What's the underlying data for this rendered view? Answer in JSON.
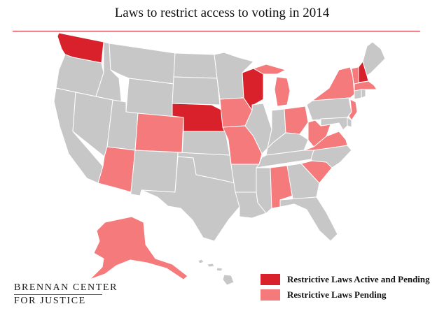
{
  "title": "Laws to restrict access to voting in 2014",
  "colors": {
    "active_and_pending": "#d8212a",
    "pending": "#f47a7c",
    "none": "#c7c7c7",
    "border": "#ffffff",
    "accent": "#d8212a"
  },
  "legend": [
    {
      "key": "active_and_pending",
      "label": "Restrictive Laws Active and Pending"
    },
    {
      "key": "pending",
      "label": "Restrictive Laws Pending"
    }
  ],
  "logo": {
    "line1": "BRENNAN CENTER",
    "line2": "FOR JUSTICE"
  },
  "states": {
    "WA": "active_and_pending",
    "OR": "none",
    "CA": "none",
    "NV": "none",
    "ID": "none",
    "MT": "none",
    "WY": "none",
    "UT": "none",
    "AZ": "pending",
    "CO": "pending",
    "NM": "none",
    "ND": "none",
    "SD": "none",
    "NE": "active_and_pending",
    "KS": "none",
    "OK": "none",
    "TX": "none",
    "MN": "none",
    "IA": "pending",
    "MO": "pending",
    "AR": "none",
    "LA": "none",
    "WI": "active_and_pending",
    "IL": "none",
    "MS": "none",
    "MI": "pending",
    "IN": "none",
    "OH": "pending",
    "KY": "none",
    "TN": "none",
    "AL": "pending",
    "GA": "none",
    "FL": "none",
    "SC": "pending",
    "NC": "none",
    "VA": "pending",
    "WV": "pending",
    "PA": "none",
    "NY": "pending",
    "VT": "pending",
    "NH": "active_and_pending",
    "ME": "none",
    "MA": "pending",
    "CT": "none",
    "RI": "none",
    "NJ": "pending",
    "DE": "none",
    "MD": "none",
    "AK": "pending",
    "HI": "none"
  }
}
